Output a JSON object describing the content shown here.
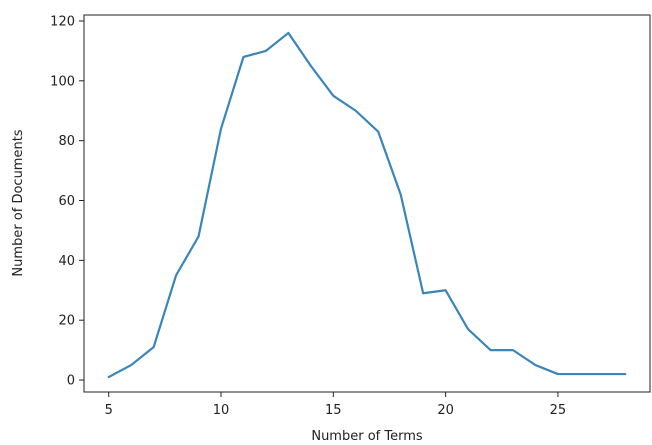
{
  "chart_data": {
    "type": "line",
    "title": "",
    "xlabel": "Number of Terms",
    "ylabel": "Number of Documents",
    "xlim": [
      3.9,
      29.1
    ],
    "ylim": [
      -4,
      122
    ],
    "xticks": [
      5,
      10,
      15,
      20,
      25
    ],
    "yticks": [
      0,
      20,
      40,
      60,
      80,
      100,
      120
    ],
    "grid": false,
    "legend": "none",
    "series": [
      {
        "color": "#3a86b8",
        "x": [
          5,
          6,
          7,
          8,
          9,
          10,
          11,
          12,
          13,
          14,
          15,
          16,
          17,
          18,
          19,
          20,
          21,
          22,
          23,
          24,
          25,
          26,
          27,
          28
        ],
        "y": [
          1,
          5,
          11,
          35,
          48,
          84,
          108,
          110,
          116,
          105,
          95,
          90,
          83,
          62,
          29,
          30,
          17,
          10,
          10,
          5,
          2,
          2,
          2,
          2
        ]
      }
    ]
  }
}
